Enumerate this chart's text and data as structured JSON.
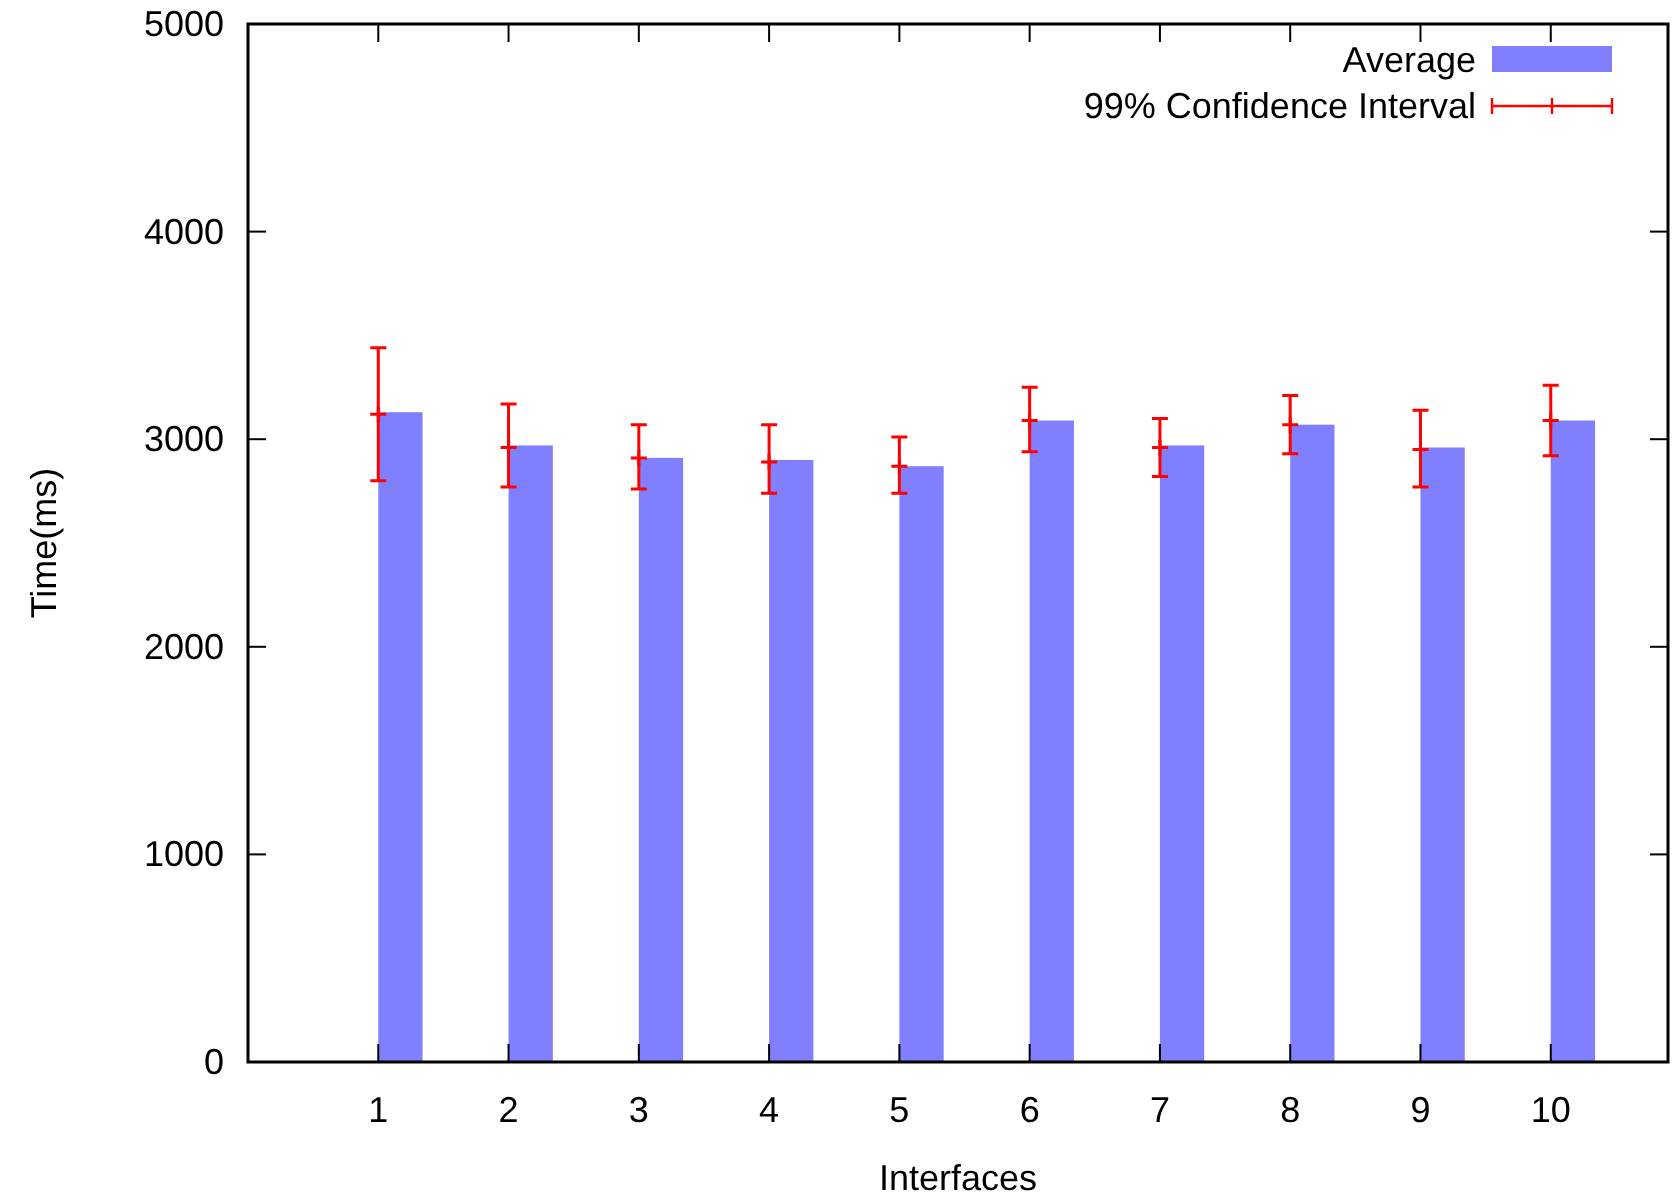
{
  "chart_data": {
    "type": "bar",
    "xlabel": "Interfaces",
    "ylabel": "Time(ms)",
    "xlim": [
      0,
      10.9
    ],
    "xticks": [
      1,
      2,
      3,
      4,
      5,
      6,
      7,
      8,
      9,
      10
    ],
    "ylim": [
      0,
      5000
    ],
    "yticks": [
      0,
      1000,
      2000,
      3000,
      4000,
      5000
    ],
    "grid": false,
    "legend": "top right",
    "series": [
      {
        "name": "Average",
        "x": [
          1.17,
          2.17,
          3.17,
          4.17,
          5.17,
          6.17,
          7.17,
          8.17,
          9.17,
          10.17
        ],
        "color": "#8080ff",
        "values": [
          3130,
          2970,
          2910,
          2900,
          2870,
          3090,
          2970,
          3070,
          2960,
          3090
        ]
      },
      {
        "name": "99% Confidence Interval",
        "type": "scatter",
        "marker": "cross",
        "x": [
          1,
          2,
          3,
          4,
          5,
          6,
          7,
          8,
          9,
          10
        ],
        "color": "#ff0000",
        "values": [
          3120,
          2960,
          2910,
          2890,
          2870,
          3090,
          2960,
          3070,
          2950,
          3090
        ],
        "errors": [
          [
            2800,
            3440
          ],
          [
            2770,
            3170
          ],
          [
            2760,
            3070
          ],
          [
            2740,
            3070
          ],
          [
            2740,
            3010
          ],
          [
            2940,
            3250
          ],
          [
            2820,
            3100
          ],
          [
            2930,
            3210
          ],
          [
            2770,
            3140
          ],
          [
            2920,
            3260
          ]
        ]
      }
    ]
  }
}
